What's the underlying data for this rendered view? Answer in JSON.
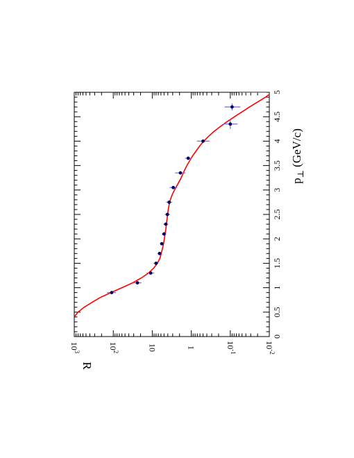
{
  "chart_data": {
    "type": "scatter",
    "title": "",
    "xlabel": "p",
    "xlabel_subscript": "⊥",
    "xlabel_units": " (GeV/c)",
    "ylabel": "R",
    "xlim": [
      0,
      5
    ],
    "ylim": [
      0.01,
      1000
    ],
    "y_scale": "log",
    "x_ticks": [
      "0",
      "0.5",
      "1",
      "1.5",
      "2",
      "2.5",
      "3",
      "3.5",
      "4",
      "4.5",
      "5"
    ],
    "y_ticks": [
      {
        "base": "10",
        "exp": "3"
      },
      {
        "base": "10",
        "exp": "2"
      },
      {
        "base": "10",
        "exp": ""
      },
      {
        "base": "1",
        "exp": ""
      },
      {
        "base": "10",
        "exp": "-1"
      },
      {
        "base": "10",
        "exp": "-2"
      }
    ],
    "series": [
      {
        "marker_color": "#000066",
        "error_bar_color": "#6f6fe0",
        "points": [
          {
            "x": 0.9,
            "y": 110,
            "ylo": 85,
            "yhi": 145,
            "xerr": 0
          },
          {
            "x": 1.1,
            "y": 24,
            "ylo": 19,
            "yhi": 31,
            "xerr": 0
          },
          {
            "x": 1.3,
            "y": 11,
            "ylo": 9,
            "yhi": 14,
            "xerr": 0
          },
          {
            "x": 1.5,
            "y": 8.0,
            "ylo": 7.0,
            "yhi": 9.3,
            "xerr": 0
          },
          {
            "x": 1.7,
            "y": 6.5,
            "ylo": 5.8,
            "yhi": 7.4,
            "xerr": 0
          },
          {
            "x": 1.9,
            "y": 5.7,
            "ylo": 5.1,
            "yhi": 6.4,
            "xerr": 0
          },
          {
            "x": 2.1,
            "y": 5.0,
            "ylo": 4.4,
            "yhi": 5.7,
            "xerr": 0
          },
          {
            "x": 2.3,
            "y": 4.5,
            "ylo": 3.9,
            "yhi": 5.2,
            "xerr": 0
          },
          {
            "x": 2.5,
            "y": 4.1,
            "ylo": 3.5,
            "yhi": 4.8,
            "xerr": 0
          },
          {
            "x": 2.75,
            "y": 3.7,
            "ylo": 3.1,
            "yhi": 4.4,
            "xerr": 0
          },
          {
            "x": 3.05,
            "y": 2.9,
            "ylo": 2.3,
            "yhi": 3.6,
            "xerr": 0
          },
          {
            "x": 3.35,
            "y": 1.9,
            "ylo": 1.4,
            "yhi": 2.6,
            "xerr": 0
          },
          {
            "x": 3.65,
            "y": 1.2,
            "ylo": 1.0,
            "yhi": 1.45,
            "xerr": 0
          },
          {
            "x": 4.0,
            "y": 0.5,
            "ylo": 0.34,
            "yhi": 0.72,
            "xerr": 0
          },
          {
            "x": 4.35,
            "y": 0.1,
            "ylo": 0.065,
            "yhi": 0.15,
            "xerr": 0.1
          },
          {
            "x": 4.7,
            "y": 0.09,
            "ylo": 0.055,
            "yhi": 0.14,
            "xerr": 0.07
          },
          {
            "x": 5.0,
            "y": 0.04,
            "ylo": 0.012,
            "yhi": 0.06,
            "xerr": 0,
            "clipped": true
          }
        ]
      }
    ],
    "fit_curve": {
      "color": "#ff0000",
      "points": [
        [
          0.4,
          1000
        ],
        [
          0.5,
          800
        ],
        [
          0.6,
          560
        ],
        [
          0.7,
          350
        ],
        [
          0.8,
          215
        ],
        [
          0.9,
          115
        ],
        [
          1.0,
          60
        ],
        [
          1.1,
          32
        ],
        [
          1.2,
          19
        ],
        [
          1.3,
          12.5
        ],
        [
          1.4,
          9.2
        ],
        [
          1.5,
          7.4
        ],
        [
          1.6,
          6.4
        ],
        [
          1.7,
          5.9
        ],
        [
          1.8,
          5.5
        ],
        [
          1.9,
          5.15
        ],
        [
          2.0,
          4.9
        ],
        [
          2.2,
          4.5
        ],
        [
          2.4,
          4.2
        ],
        [
          2.6,
          3.9
        ],
        [
          2.7,
          3.7
        ],
        [
          2.8,
          3.45
        ],
        [
          2.9,
          3.1
        ],
        [
          3.0,
          2.7
        ],
        [
          3.1,
          2.3
        ],
        [
          3.2,
          1.95
        ],
        [
          3.3,
          1.7
        ],
        [
          3.4,
          1.5
        ],
        [
          3.5,
          1.3
        ],
        [
          3.6,
          1.1
        ],
        [
          3.7,
          0.92
        ],
        [
          3.8,
          0.75
        ],
        [
          3.9,
          0.61
        ],
        [
          4.0,
          0.48
        ],
        [
          4.1,
          0.36
        ],
        [
          4.2,
          0.26
        ],
        [
          4.3,
          0.18
        ],
        [
          4.4,
          0.12
        ],
        [
          4.5,
          0.078
        ],
        [
          4.6,
          0.05
        ],
        [
          4.7,
          0.032
        ],
        [
          4.8,
          0.02
        ],
        [
          4.9,
          0.0125
        ],
        [
          4.95,
          0.0103
        ]
      ]
    },
    "grid": false,
    "legend": "none"
  }
}
